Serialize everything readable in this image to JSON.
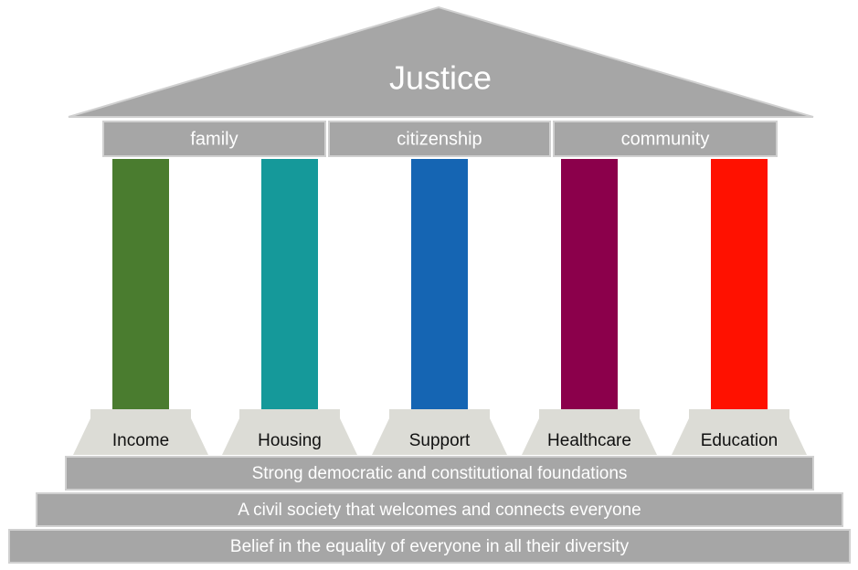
{
  "roof": {
    "title": "Justice"
  },
  "beam": [
    "family",
    "citizenship",
    "community"
  ],
  "pillars": [
    {
      "label": "Income",
      "color": "#4a7c2f"
    },
    {
      "label": "Housing",
      "color": "#15999a"
    },
    {
      "label": "Support",
      "color": "#1565b3"
    },
    {
      "label": "Healthcare",
      "color": "#8b004b"
    },
    {
      "label": "Education",
      "color": "#ff1100"
    }
  ],
  "steps": [
    "Strong democratic and constitutional foundations",
    "A civil society that welcomes and connects everyone",
    "Belief in the equality of everyone in all their diversity"
  ]
}
